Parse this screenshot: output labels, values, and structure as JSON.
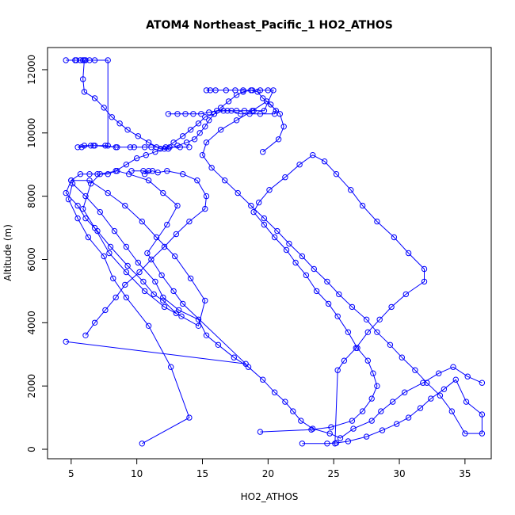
{
  "chart_data": {
    "type": "scatter",
    "title": "ATOM4 Northeast_Pacific_1 HO2_ATHOS",
    "xlabel": "HO2_ATHOS",
    "ylabel": "Altitude (m)",
    "xlim": [
      3.2,
      37.0
    ],
    "ylim": [
      -300,
      12700
    ],
    "xticks": [
      "5",
      "10",
      "15",
      "20",
      "25",
      "30",
      "35"
    ],
    "yticks": [
      "0",
      "2000",
      "4000",
      "6000",
      "8000",
      "10000",
      "12000"
    ],
    "grid": false,
    "legend": "none",
    "color": "#0000ff",
    "series": [
      {
        "x": [
          10.4,
          14.0,
          12.6,
          10.9,
          9.2,
          8.2,
          7.5,
          6.3,
          5.5,
          4.8,
          5.1,
          6.1,
          7.2,
          8.3,
          9.2,
          10.1,
          11.4,
          12.0,
          13.2,
          14.7,
          15.3,
          16.2,
          17.4,
          18.5,
          19.6,
          20.5,
          21.3,
          21.9,
          22.5,
          23.4,
          24.7,
          25.5,
          26.5,
          27.9,
          28.6,
          29.5,
          30.4,
          31.8,
          33.0,
          34.1,
          35.2,
          36.3
        ],
        "y": [
          180,
          1000,
          2600,
          3900,
          4800,
          5400,
          6100,
          6700,
          7300,
          7900,
          8400,
          8000,
          7500,
          6900,
          6400,
          5900,
          5300,
          4800,
          4400,
          4100,
          3600,
          3300,
          2900,
          2600,
          2200,
          1800,
          1500,
          1200,
          900,
          650,
          500,
          350,
          650,
          900,
          1200,
          1500,
          1800,
          2100,
          2400,
          2600,
          2300,
          2100
        ]
      },
      {
        "x": [
          4.6,
          18.3,
          13.5,
          12.8,
          11.9,
          10.8,
          12.3,
          13.1,
          12.0,
          10.9,
          9.4,
          8.5,
          7.2,
          6.5,
          5.9,
          6.8,
          7.9,
          9.2,
          10.6,
          12.1,
          13.4,
          14.7,
          15.2,
          14.1,
          12.9,
          11.5,
          10.4,
          9.1,
          7.8,
          6.4,
          5.0,
          4.6,
          5.5,
          6.1,
          7.0,
          8.0,
          9.3,
          10.5,
          11.3,
          12.0,
          13.0
        ],
        "y": [
          3400,
          2700,
          4600,
          5000,
          5500,
          6200,
          7100,
          7700,
          8100,
          8500,
          8700,
          8800,
          8700,
          8400,
          7600,
          7000,
          6200,
          5600,
          5000,
          4500,
          4200,
          3900,
          4700,
          5400,
          6100,
          6700,
          7200,
          7700,
          8100,
          8500,
          8500,
          8100,
          7700,
          7300,
          6900,
          6400,
          5800,
          5300,
          4900,
          4700,
          4300
        ]
      },
      {
        "x": [
          19.4,
          23.3,
          24.8,
          26.4,
          27.2,
          27.9,
          28.3,
          28.0,
          27.6,
          26.8,
          26.1,
          25.3,
          24.6,
          23.7,
          22.9,
          22.1,
          21.4,
          20.5,
          19.7,
          18.9,
          19.3,
          20.1,
          21.3,
          22.4,
          23.4,
          24.3,
          25.2,
          26.3,
          27.2,
          28.3,
          29.6,
          30.7,
          31.9,
          31.9,
          30.5,
          29.4,
          28.5,
          27.6,
          26.7,
          25.8,
          25.3,
          25.1
        ],
        "y": [
          550,
          620,
          700,
          900,
          1200,
          1600,
          2000,
          2400,
          2800,
          3200,
          3700,
          4200,
          4600,
          5000,
          5500,
          5900,
          6300,
          6700,
          7100,
          7500,
          7800,
          8200,
          8600,
          9000,
          9300,
          9100,
          8700,
          8200,
          7700,
          7200,
          6700,
          6200,
          5700,
          5300,
          4900,
          4500,
          4100,
          3700,
          3200,
          2800,
          2500,
          180
        ]
      },
      {
        "x": [
          22.6,
          24.5,
          25.2,
          26.1,
          27.5,
          28.7,
          29.8,
          30.7,
          31.6,
          32.4,
          33.4,
          34.3,
          35.1,
          36.3,
          36.3,
          35.0,
          34.0,
          33.1,
          32.1,
          31.2,
          30.2,
          29.3,
          28.3,
          27.5,
          26.4,
          25.4,
          24.5,
          23.5,
          22.6,
          21.6,
          20.7,
          19.7,
          18.7,
          17.7,
          16.7,
          15.7,
          15.0,
          15.3,
          16.4,
          17.6,
          18.8,
          19.9,
          20.9,
          21.2,
          20.8,
          19.6
        ],
        "y": [
          180,
          180,
          200,
          250,
          400,
          600,
          800,
          1000,
          1300,
          1600,
          1900,
          2200,
          1500,
          1100,
          500,
          500,
          1200,
          1700,
          2100,
          2500,
          2900,
          3300,
          3700,
          4100,
          4500,
          4900,
          5300,
          5700,
          6100,
          6500,
          6900,
          7300,
          7700,
          8100,
          8500,
          8900,
          9300,
          9700,
          10100,
          10400,
          10700,
          11000,
          10600,
          10200,
          9800,
          9400
        ]
      },
      {
        "x": [
          4.6,
          5.3,
          6.0,
          5.9,
          6.0,
          6.8,
          7.5,
          8.1,
          8.7,
          9.3,
          10.1,
          10.9,
          11.8,
          12.4,
          13.1,
          13.8,
          14.4,
          14.8,
          15.2,
          15.5,
          15.9,
          16.4,
          17.0,
          17.6,
          18.1,
          18.7,
          19.2,
          19.6,
          20.2,
          20.6,
          20.5,
          19.4,
          18.6,
          17.9,
          17.2,
          16.6,
          15.9,
          15.2,
          14.7,
          14.1,
          13.5,
          12.8,
          12.1,
          11.4,
          10.7,
          10.0,
          9.2,
          8.4,
          7.8,
          7.0,
          6.4,
          5.7,
          5.0
        ],
        "y": [
          12300,
          12300,
          12300,
          11700,
          11300,
          11100,
          10800,
          10500,
          10300,
          10100,
          9900,
          9700,
          9500,
          9500,
          9600,
          9700,
          9800,
          10000,
          10200,
          10400,
          10600,
          10800,
          11000,
          11200,
          11300,
          11350,
          11300,
          11100,
          10900,
          10700,
          10600,
          10600,
          10600,
          10600,
          10700,
          10700,
          10600,
          10500,
          10300,
          10100,
          9900,
          9700,
          9500,
          9400,
          9300,
          9200,
          9000,
          8800,
          8700,
          8700,
          8700,
          8700,
          8500
        ]
      },
      {
        "x": [
          5.4,
          5.7,
          5.9,
          6.1,
          6.4,
          6.8,
          7.8,
          7.8,
          6.5,
          5.8,
          5.5,
          6.0,
          6.7,
          7.6,
          8.4,
          9.5,
          10.6,
          11.5,
          12.5,
          13.3,
          14.0,
          12.2,
          11.1,
          9.8,
          8.5,
          6.8
        ],
        "y": [
          12300,
          12300,
          12300,
          12300,
          12300,
          12300,
          12300,
          9600,
          9600,
          9550,
          9550,
          9600,
          9600,
          9600,
          9550,
          9550,
          9550,
          9550,
          9550,
          9550,
          9550,
          9550,
          9550,
          9550,
          9550,
          9600
        ]
      },
      {
        "x": [
          15.3,
          15.6,
          16.0,
          16.8,
          17.5,
          18.1,
          18.8,
          19.4,
          20.0,
          20.4,
          19.7,
          18.9,
          18.2,
          17.6,
          16.9,
          16.1,
          15.5,
          14.9,
          14.3,
          13.7,
          13.1,
          12.4
        ],
        "y": [
          11350,
          11350,
          11350,
          11350,
          11350,
          11350,
          11350,
          11350,
          11350,
          11350,
          10700,
          10700,
          10700,
          10700,
          10700,
          10700,
          10650,
          10600,
          10600,
          10600,
          10600,
          10600
        ]
      },
      {
        "x": [
          9.6,
          10.5,
          10.9,
          10.6,
          11.2,
          11.6,
          12.3,
          13.5,
          14.6,
          15.3,
          15.2,
          14.0,
          13.0,
          12.1,
          11.1,
          10.2,
          9.1,
          8.4,
          7.6,
          6.8,
          6.1
        ],
        "y": [
          8800,
          8800,
          8800,
          8700,
          8800,
          8750,
          8800,
          8700,
          8500,
          8000,
          7600,
          7200,
          6800,
          6400,
          6000,
          5600,
          5200,
          4800,
          4400,
          4000,
          3600
        ]
      }
    ]
  }
}
